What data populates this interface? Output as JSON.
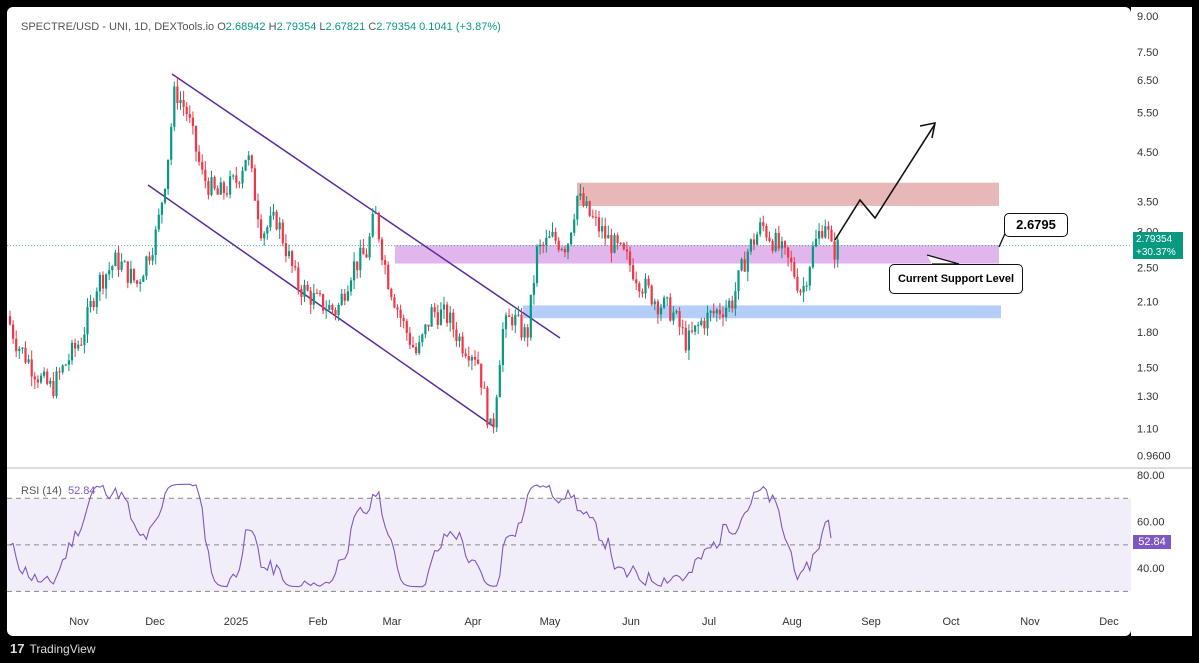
{
  "header": {
    "symbol": "SPECTRE/USD - UNI, 1D, DEXTools.io",
    "open_label": "O",
    "open": "2.68942",
    "high_label": "H",
    "high": "2.79354",
    "low_label": "L",
    "low": "2.67821",
    "close_label": "C",
    "close": "2.79354",
    "change": "0.1041 (+3.87%)"
  },
  "price_badge": {
    "price": "2.79354",
    "change": "+30.37%"
  },
  "rsi": {
    "label": "RSI (14)",
    "value": "52.84",
    "badge": "52.84"
  },
  "annotations": {
    "level_value": "2.6795",
    "support_label": "Current Support Level"
  },
  "footer": {
    "brand": "TradingView",
    "logo_glyph": "17"
  },
  "colors": {
    "up": "#089981",
    "down": "#f23645",
    "rsi": "#7e57c2",
    "resistance_zone": "#e0a0a0",
    "support_zone": "#d59ee6",
    "lower_zone": "#9bbcf7",
    "channel": "#5b2c9f"
  },
  "chart_data": [
    {
      "type": "candlestick",
      "title": "SPECTRE/USD - UNI, 1D, DEXTools.io",
      "x_ticks": [
        "Nov",
        "Dec",
        "2025",
        "Feb",
        "Mar",
        "Apr",
        "May",
        "Jun",
        "Jul",
        "Aug",
        "Sep",
        "Oct",
        "Nov",
        "Dec"
      ],
      "y_ticks": [
        "9.00",
        "7.50",
        "6.50",
        "5.50",
        "4.50",
        "3.50",
        "3.00",
        "2.50",
        "2.10",
        "1.80",
        "1.50",
        "1.30",
        "1.10",
        "0.9600"
      ],
      "y_scale": "log",
      "ylim": [
        0.85,
        9.0
      ],
      "last": {
        "open": 2.68942,
        "high": 2.79354,
        "low": 2.67821,
        "close": 2.79354
      },
      "zones": [
        {
          "name": "resistance",
          "from": 3.42,
          "to": 3.85
        },
        {
          "name": "current support",
          "from": 2.55,
          "to": 2.8
        },
        {
          "name": "lower support",
          "from": 1.93,
          "to": 2.06
        }
      ],
      "current_support_level": 2.6795,
      "descending_channel": "top and bottom trendlines from Nov 2024 high to Apr 2025 low",
      "projection": "zig-zag arrow pointing up toward 5.00"
    },
    {
      "type": "line",
      "title": "RSI (14)",
      "y_ticks": [
        "80.00",
        "60.00",
        "40.00"
      ],
      "ylim": [
        25,
        80
      ],
      "bands": [
        70,
        50,
        30
      ],
      "last_value": 52.84
    }
  ]
}
